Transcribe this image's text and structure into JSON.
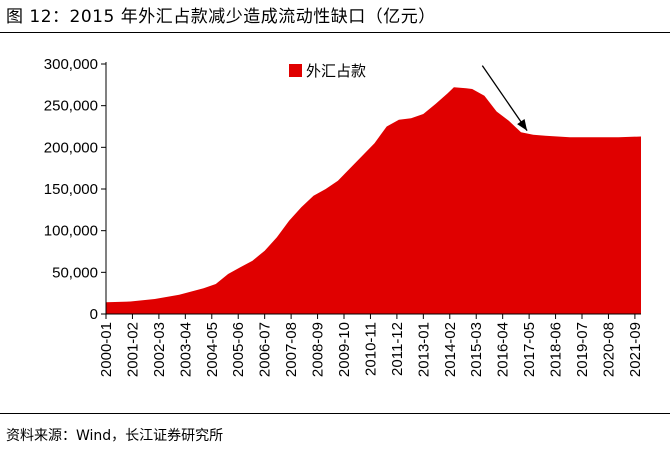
{
  "figure": {
    "title": "图 12：2015 年外汇占款减少造成流动性缺口（亿元）",
    "source": "资料来源：Wind，长江证券研究所"
  },
  "chart_data": {
    "type": "area",
    "title": "",
    "xlabel": "",
    "ylabel": "",
    "ylim": [
      0,
      300000
    ],
    "yticks": [
      "0",
      "50,000",
      "100,000",
      "150,000",
      "200,000",
      "250,000",
      "300,000"
    ],
    "ytick_values": [
      0,
      50000,
      100000,
      150000,
      200000,
      250000,
      300000
    ],
    "xtick_labels": [
      "2000-01",
      "2001-02",
      "2002-03",
      "2003-04",
      "2004-05",
      "2005-06",
      "2006-07",
      "2007-08",
      "2008-09",
      "2009-10",
      "2010-11",
      "2011-12",
      "2013-01",
      "2014-02",
      "2015-03",
      "2016-04",
      "2017-05",
      "2018-06",
      "2019-07",
      "2020-08",
      "2021-09"
    ],
    "x_range": [
      "2000-01",
      "2021-12"
    ],
    "legend_position": "top",
    "grid": false,
    "series": [
      {
        "name": "外汇占款",
        "color": "#e00000",
        "points": [
          [
            "2000-01",
            14000
          ],
          [
            "2001-01",
            15000
          ],
          [
            "2002-01",
            18000
          ],
          [
            "2003-01",
            23000
          ],
          [
            "2004-01",
            31000
          ],
          [
            "2004-07",
            36000
          ],
          [
            "2005-01",
            48000
          ],
          [
            "2005-07",
            56000
          ],
          [
            "2006-01",
            64000
          ],
          [
            "2006-07",
            76000
          ],
          [
            "2007-01",
            92000
          ],
          [
            "2007-07",
            112000
          ],
          [
            "2008-01",
            128000
          ],
          [
            "2008-07",
            142000
          ],
          [
            "2009-01",
            150000
          ],
          [
            "2009-07",
            160000
          ],
          [
            "2010-01",
            175000
          ],
          [
            "2010-07",
            190000
          ],
          [
            "2011-01",
            205000
          ],
          [
            "2011-07",
            225000
          ],
          [
            "2012-01",
            233000
          ],
          [
            "2012-07",
            235000
          ],
          [
            "2013-01",
            240000
          ],
          [
            "2013-07",
            252000
          ],
          [
            "2014-01",
            265000
          ],
          [
            "2014-04",
            272000
          ],
          [
            "2014-10",
            271000
          ],
          [
            "2015-01",
            270000
          ],
          [
            "2015-07",
            262000
          ],
          [
            "2016-01",
            243000
          ],
          [
            "2016-07",
            232000
          ],
          [
            "2017-01",
            218000
          ],
          [
            "2017-07",
            215000
          ],
          [
            "2018-01",
            214000
          ],
          [
            "2019-01",
            212000
          ],
          [
            "2020-01",
            212000
          ],
          [
            "2021-01",
            212000
          ],
          [
            "2021-12",
            213000
          ]
        ]
      }
    ],
    "annotations": [
      {
        "type": "arrow",
        "from": [
          "2015-06",
          298000
        ],
        "to": [
          "2017-04",
          220000
        ]
      }
    ]
  }
}
